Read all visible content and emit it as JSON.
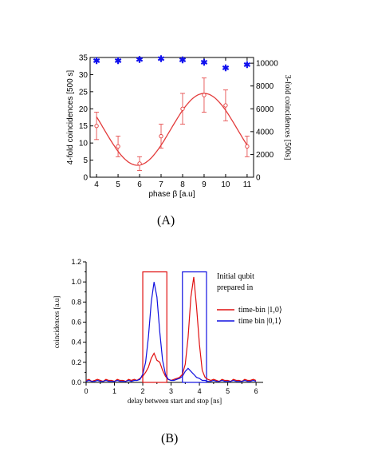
{
  "captions": {
    "a": "(A)",
    "b": "(B)"
  },
  "chart_data": [
    {
      "type": "scatter",
      "xlabel": "phase β [a.u]",
      "ylabel": "4-fold coincidences [500 s]",
      "y2label": "3-fold coincidences [500s]",
      "xlim": [
        3.7,
        11.3
      ],
      "ylim": [
        0,
        35
      ],
      "y2lim": [
        0,
        10500
      ],
      "x_ticks": [
        "4",
        "5",
        "6",
        "7",
        "8",
        "9",
        "10",
        "11"
      ],
      "y_ticks": [
        "0",
        "5",
        "10",
        "15",
        "20",
        "25",
        "30",
        "35"
      ],
      "y2_ticks": [
        "0",
        "2000",
        "4000",
        "6000",
        "8000",
        "10000"
      ],
      "colors": {
        "fourfold": "#e33b3b",
        "threefold": "#1010ee"
      },
      "series": [
        {
          "axis": "left",
          "marker": "open-circle",
          "x": [
            4,
            5,
            6,
            7,
            8,
            9,
            10,
            11
          ],
          "y": [
            15,
            9,
            4,
            12,
            20,
            24,
            21,
            9
          ],
          "err": [
            4,
            3,
            2,
            3.5,
            4.5,
            5,
            4.5,
            3
          ]
        },
        {
          "axis": "left",
          "marker": "line",
          "fit": "cosine",
          "offset": 14,
          "amplitude": 10.5,
          "period": 6.2,
          "peak_x": 9.0
        },
        {
          "axis": "right",
          "marker": "star",
          "x": [
            4,
            5,
            6,
            7,
            8,
            9,
            10,
            11
          ],
          "y": [
            10200,
            10200,
            10300,
            10350,
            10250,
            10050,
            9550,
            9850
          ]
        }
      ]
    },
    {
      "type": "line",
      "xlabel": "delay between start and stop [ns]",
      "ylabel": "coincidences [a.u]",
      "xlim": [
        0,
        6.25
      ],
      "ylim": [
        0,
        1.2
      ],
      "x_ticks": [
        "0",
        "1",
        "2",
        "3",
        "4",
        "5",
        "6"
      ],
      "y_ticks": [
        "0.0",
        "0.2",
        "0.4",
        "0.6",
        "0.8",
        "1.0",
        "1.2"
      ],
      "legend_title": [
        "Initial qubit",
        "prepared in"
      ],
      "legend_position": "top-right",
      "boxes": [
        {
          "x0": 2.0,
          "x1": 2.85,
          "y0": 0,
          "y1": 1.1,
          "color": "#e01010"
        },
        {
          "x0": 3.4,
          "x1": 4.25,
          "y0": 0,
          "y1": 1.1,
          "color": "#1010e0"
        }
      ],
      "series": [
        {
          "name": "time-bin |1,0⟩",
          "color": "#e01010",
          "x": [
            0,
            0.1,
            0.2,
            0.3,
            0.4,
            0.5,
            0.6,
            0.7,
            0.8,
            0.9,
            1.0,
            1.1,
            1.2,
            1.3,
            1.4,
            1.5,
            1.6,
            1.7,
            1.8,
            1.9,
            2.0,
            2.1,
            2.2,
            2.3,
            2.4,
            2.5,
            2.6,
            2.7,
            2.8,
            2.9,
            3.0,
            3.1,
            3.2,
            3.3,
            3.4,
            3.5,
            3.6,
            3.7,
            3.8,
            3.9,
            4.0,
            4.1,
            4.2,
            4.3,
            4.4,
            4.5,
            4.6,
            4.7,
            4.8,
            4.9,
            5.0,
            5.1,
            5.2,
            5.3,
            5.4,
            5.5,
            5.6,
            5.7,
            5.8,
            5.9,
            6.0
          ],
          "y": [
            0.02,
            0.03,
            0.01,
            0.02,
            0.03,
            0.02,
            0.01,
            0.03,
            0.02,
            0.02,
            0.01,
            0.03,
            0.02,
            0.02,
            0.01,
            0.03,
            0.02,
            0.03,
            0.02,
            0.04,
            0.06,
            0.1,
            0.15,
            0.24,
            0.29,
            0.22,
            0.2,
            0.12,
            0.06,
            0.03,
            0.02,
            0.03,
            0.04,
            0.05,
            0.08,
            0.18,
            0.45,
            0.85,
            1.05,
            0.75,
            0.38,
            0.12,
            0.05,
            0.03,
            0.02,
            0.03,
            0.02,
            0.01,
            0.03,
            0.02,
            0.02,
            0.01,
            0.03,
            0.02,
            0.02,
            0.01,
            0.03,
            0.02,
            0.02,
            0.03,
            0.02
          ]
        },
        {
          "name": "time bin |0,1⟩",
          "color": "#1010e0",
          "x": [
            0,
            0.1,
            0.2,
            0.3,
            0.4,
            0.5,
            0.6,
            0.7,
            0.8,
            0.9,
            1.0,
            1.1,
            1.2,
            1.3,
            1.4,
            1.5,
            1.6,
            1.7,
            1.8,
            1.9,
            2.0,
            2.1,
            2.2,
            2.3,
            2.4,
            2.5,
            2.6,
            2.7,
            2.8,
            2.9,
            3.0,
            3.1,
            3.2,
            3.3,
            3.4,
            3.5,
            3.6,
            3.7,
            3.8,
            3.9,
            4.0,
            4.1,
            4.2,
            4.3,
            4.4,
            4.5,
            4.6,
            4.7,
            4.8,
            4.9,
            5.0,
            5.1,
            5.2,
            5.3,
            5.4,
            5.5,
            5.6,
            5.7,
            5.8,
            5.9,
            6.0
          ],
          "y": [
            0.01,
            0.02,
            0.01,
            0.01,
            0.02,
            0.01,
            0.01,
            0.02,
            0.01,
            0.01,
            0.01,
            0.02,
            0.01,
            0.01,
            0.01,
            0.02,
            0.01,
            0.02,
            0.02,
            0.03,
            0.08,
            0.2,
            0.45,
            0.8,
            1.0,
            0.85,
            0.5,
            0.22,
            0.08,
            0.03,
            0.02,
            0.02,
            0.03,
            0.04,
            0.06,
            0.11,
            0.14,
            0.11,
            0.08,
            0.05,
            0.04,
            0.02,
            0.02,
            0.01,
            0.01,
            0.02,
            0.01,
            0.01,
            0.02,
            0.01,
            0.01,
            0.01,
            0.02,
            0.01,
            0.01,
            0.01,
            0.02,
            0.01,
            0.01,
            0.02,
            0.01
          ]
        }
      ]
    }
  ]
}
